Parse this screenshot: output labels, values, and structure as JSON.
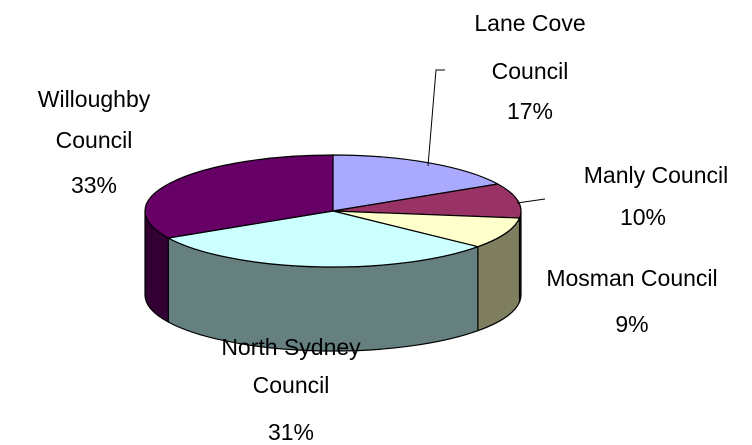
{
  "chart_data": {
    "type": "pie",
    "three_d": true,
    "legend": "none",
    "slices": [
      {
        "label_lines": [
          "Lane Cove",
          "Council"
        ],
        "percent_label": "17%",
        "value": 17,
        "color": "#a9a9ff",
        "side_color": "#6f6fae"
      },
      {
        "label_lines": [
          "Manly Council"
        ],
        "percent_label": "10%",
        "value": 10,
        "color": "#993366",
        "side_color": "#5e1f3e"
      },
      {
        "label_lines": [
          "Mosman Council"
        ],
        "percent_label": "9%",
        "value": 9,
        "color": "#ffffcc",
        "side_color": "#7f7f5f"
      },
      {
        "label_lines": [
          "North Sydney",
          "Council"
        ],
        "percent_label": "31%",
        "value": 31,
        "color": "#ccffff",
        "side_color": "#668080"
      },
      {
        "label_lines": [
          "Willoughby",
          "Council"
        ],
        "percent_label": "33%",
        "value": 33,
        "color": "#660066",
        "side_color": "#330033"
      }
    ]
  }
}
